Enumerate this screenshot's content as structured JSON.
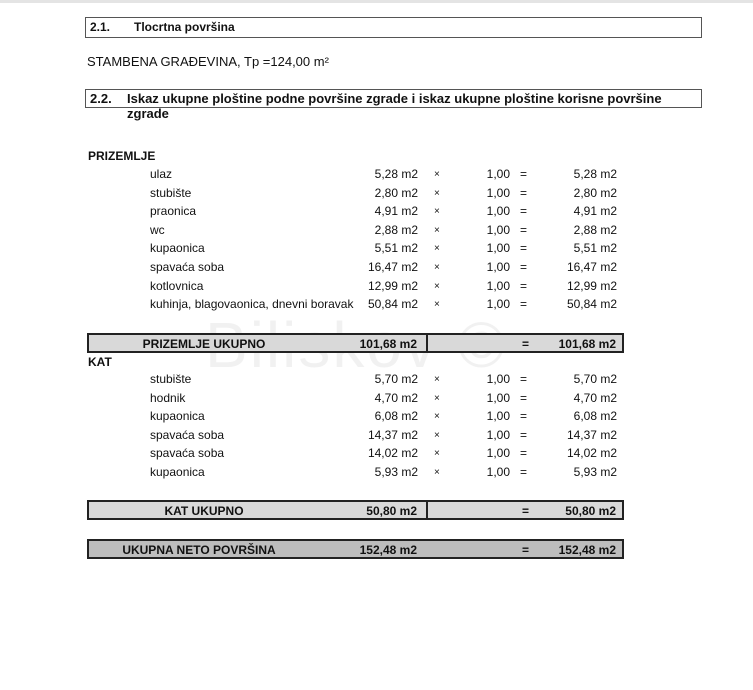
{
  "watermark": "Biliskov ©",
  "section_1": {
    "number": "2.1.",
    "title": "Tlocrtna površina"
  },
  "building": "STAMBENA GRAĐEVINA, Tp =124,00 m²",
  "section_2": {
    "number": "2.2.",
    "title": "Iskaz ukupne ploštine podne površine zgrade  i iskaz ukupne ploštine korisne površine zgrade"
  },
  "symbols": {
    "times": "×",
    "equals": "="
  },
  "prizemlje": {
    "label": "PRIZEMLJE",
    "rows": [
      {
        "name": "ulaz",
        "area": "5,28 m2",
        "factor": "1,00",
        "result": "5,28 m2"
      },
      {
        "name": "stubište",
        "area": "2,80 m2",
        "factor": "1,00",
        "result": "2,80 m2"
      },
      {
        "name": "praonica",
        "area": "4,91 m2",
        "factor": "1,00",
        "result": "4,91 m2"
      },
      {
        "name": "wc",
        "area": "2,88 m2",
        "factor": "1,00",
        "result": "2,88 m2"
      },
      {
        "name": "kupaonica",
        "area": "5,51 m2",
        "factor": "1,00",
        "result": "5,51 m2"
      },
      {
        "name": "spavaća soba",
        "area": "16,47 m2",
        "factor": "1,00",
        "result": "16,47 m2"
      },
      {
        "name": "kotlovnica",
        "area": "12,99 m2",
        "factor": "1,00",
        "result": "12,99 m2"
      },
      {
        "name": "kuhinja, blagovaonica, dnevni boravak",
        "area": "50,84 m2",
        "factor": "1,00",
        "result": "50,84 m2"
      }
    ],
    "total": {
      "label": "PRIZEMLJE UKUPNO",
      "area": "101,68 m2",
      "result": "101,68 m2"
    }
  },
  "kat": {
    "label": "KAT",
    "rows": [
      {
        "name": "stubište",
        "area": "5,70 m2",
        "factor": "1,00",
        "result": "5,70 m2"
      },
      {
        "name": "hodnik",
        "area": "4,70 m2",
        "factor": "1,00",
        "result": "4,70 m2"
      },
      {
        "name": "kupaonica",
        "area": "6,08 m2",
        "factor": "1,00",
        "result": "6,08 m2"
      },
      {
        "name": "spavaća soba",
        "area": "14,37 m2",
        "factor": "1,00",
        "result": "14,37 m2"
      },
      {
        "name": "spavaća soba",
        "area": "14,02 m2",
        "factor": "1,00",
        "result": "14,02 m2"
      },
      {
        "name": "kupaonica",
        "area": "5,93 m2",
        "factor": "1,00",
        "result": "5,93 m2"
      }
    ],
    "total": {
      "label": "KAT UKUPNO",
      "area": "50,80 m2",
      "result": "50,80 m2"
    }
  },
  "grand_total": {
    "label": "UKUPNA NETO POVRŠINA",
    "area": "152,48 m2",
    "result": "152,48 m2"
  }
}
